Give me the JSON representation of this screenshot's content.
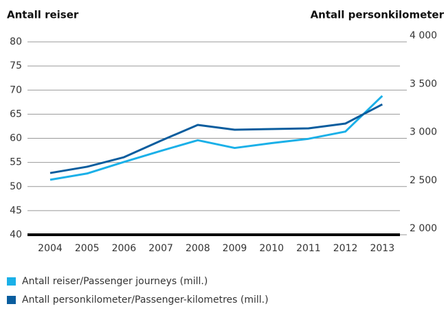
{
  "chart_data": {
    "type": "line",
    "y_label": "Antall reiser",
    "y2_label": "Antall personkilometer",
    "categories": [
      "2004",
      "2005",
      "2006",
      "2007",
      "2008",
      "2009",
      "2010",
      "2011",
      "2012",
      "2013"
    ],
    "series": [
      {
        "name": "Antall reiser/Passenger journeys (mill.)",
        "color": "#1ab0e8",
        "values": [
          51.4,
          52.7,
          55.1,
          57.4,
          59.6,
          58.0,
          59.0,
          59.9,
          61.4,
          68.8
        ]
      },
      {
        "name": "Antall personkilometer/Passenger-kilometres (mill.)",
        "color": "#0a5d9e",
        "axis": "y2",
        "values": [
          2640,
          2705,
          2804,
          2975,
          3139,
          3089,
          3096,
          3103,
          3153,
          3352
        ]
      }
    ],
    "ylim": [
      40,
      80
    ],
    "yticks": [
      40,
      45,
      50,
      55,
      60,
      65,
      70,
      75,
      80
    ],
    "y2lim": [
      2000,
      4000
    ],
    "y2ticks": [
      {
        "value": 2000,
        "label": "2 000"
      },
      {
        "value": 2500,
        "label": "2 500"
      },
      {
        "value": 3000,
        "label": "3 000"
      },
      {
        "value": 3500,
        "label": "3 500"
      },
      {
        "value": 4000,
        "label": "4 000"
      }
    ],
    "grid": true
  }
}
